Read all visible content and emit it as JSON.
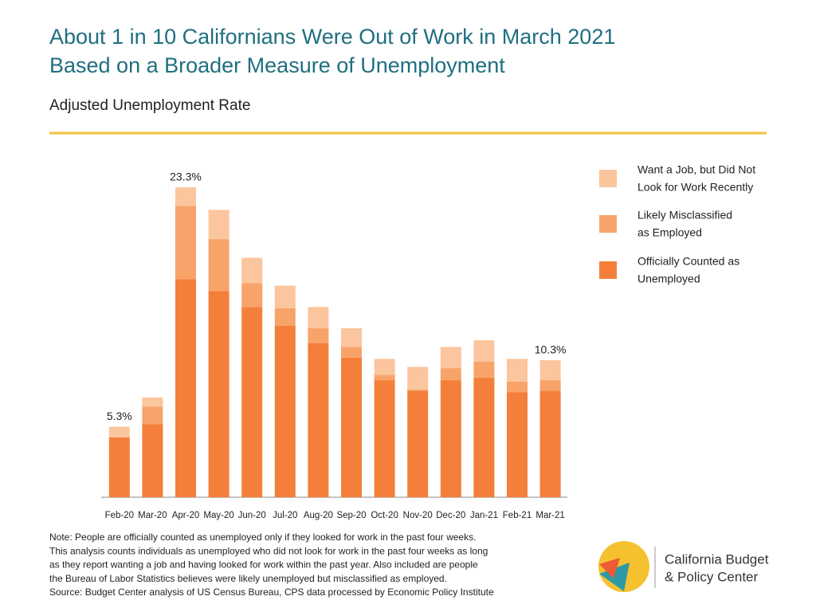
{
  "chart_data": {
    "type": "stacked_bar",
    "title": [
      "About 1 in 10 Californians Were Out of Work in March 2021",
      "Based on a Broader Measure of Unemployment"
    ],
    "subtitle": "Adjusted Unemployment Rate",
    "categories": [
      "Feb-20",
      "Mar-20",
      "Apr-20",
      "May-20",
      "Jun-20",
      "Jul-20",
      "Aug-20",
      "Sep-20",
      "Oct-20",
      "Nov-20",
      "Dec-20",
      "Jan-21",
      "Feb-21",
      "Mar-21"
    ],
    "series": [
      {
        "name": "Officially Counted as Unemployed",
        "color": "#f47f3a",
        "values": [
          4.5,
          5.5,
          16.4,
          15.5,
          14.3,
          12.9,
          11.6,
          10.5,
          8.8,
          8.0,
          8.8,
          9.0,
          7.9,
          8.0
        ]
      },
      {
        "name": "Likely Misclassified as Employed",
        "color": "#f8a36a",
        "values": [
          0,
          1.3,
          5.5,
          3.9,
          1.8,
          1.3,
          1.1,
          0.8,
          0.4,
          0.1,
          0.9,
          1.2,
          0.8,
          0.8
        ]
      },
      {
        "name": "Want a Job, but Did Not Look for Work Recently",
        "color": "#fbc59d",
        "values": [
          0.8,
          0.7,
          1.4,
          2.2,
          1.9,
          1.7,
          1.6,
          1.4,
          1.2,
          1.7,
          1.6,
          1.6,
          1.7,
          1.5
        ]
      }
    ],
    "legend_lines": [
      [
        "Want a Job, but Did Not",
        "Look for Work Recently"
      ],
      [
        "Likely Misclassified",
        "as Employed"
      ],
      [
        "Officially Counted as",
        "Unemployed"
      ]
    ],
    "annotations": [
      {
        "category": "Feb-20",
        "value": 5.3,
        "label": "5.3%"
      },
      {
        "category": "Apr-20",
        "value": 23.3,
        "label": "23.3%"
      },
      {
        "category": "Mar-21",
        "value": 10.3,
        "label": "10.3%"
      }
    ],
    "notes": [
      "Note: People are officially counted as unemployed only if they looked for work in the past four weeks.",
      "This analysis counts individuals as unemployed who did not look for work in the past four weeks as long",
      "as they report wanting a job and having looked for work within the past year. Also included are people",
      "the Bureau of Labor Statistics believes were likely unemployed but misclassified as employed.",
      "Source: Budget Center analysis of US Census Bureau, CPS data processed by Economic Policy Institute"
    ],
    "logo_text": [
      "California Budget",
      "& Policy Center"
    ]
  }
}
